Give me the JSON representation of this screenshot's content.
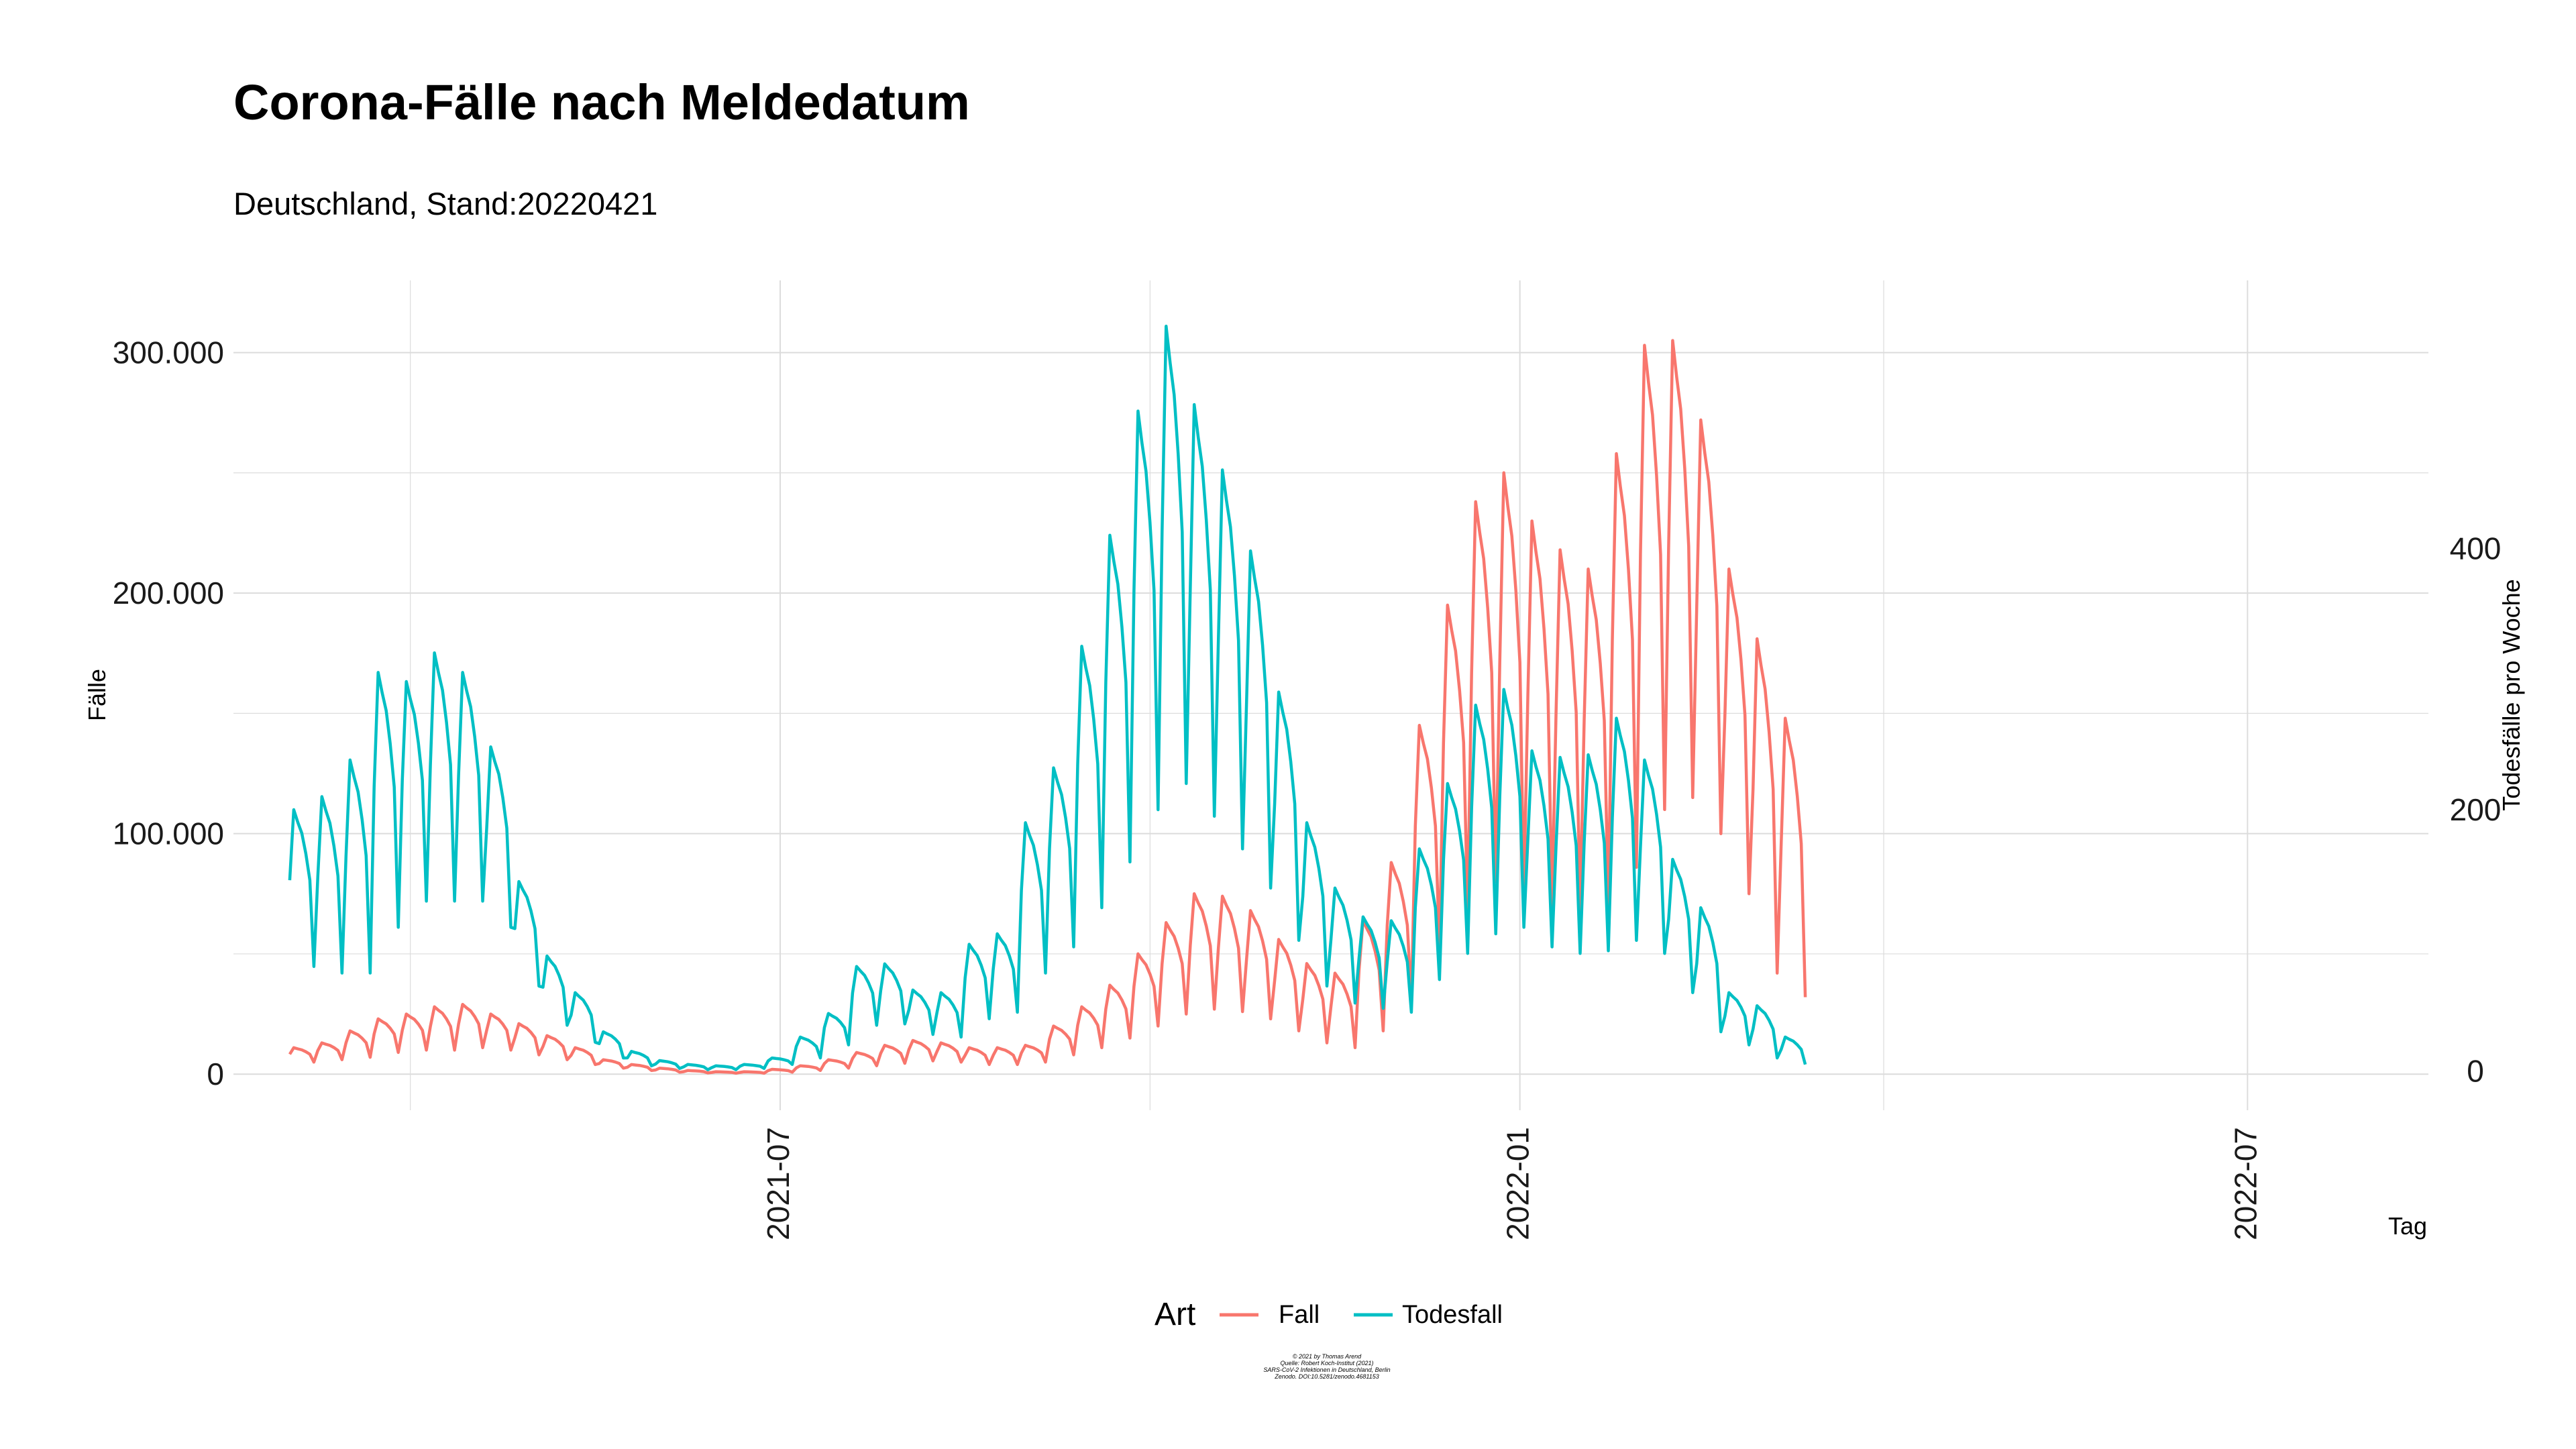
{
  "title": "Corona-Fälle nach Meldedatum",
  "subtitle": "Deutschland, Stand:20220421",
  "caption": [
    "© 2021 by Thomas Arend",
    "Quelle: Robert Koch-Institut (2021)",
    "SARS-CoV-2 Infektionen in Deutschland, Berlin",
    "Zenodo. DOI:10.5281/zenodo.4681153"
  ],
  "colors": {
    "Fall": "#F8766D",
    "Todesfall": "#00BFC4",
    "grid": "#dcdcdc"
  },
  "chart_data": {
    "type": "line",
    "title": "Corona-Fälle nach Meldedatum",
    "subtitle": "Deutschland, Stand:20220421",
    "xlabel": "Tag",
    "ylabel": "Fälle",
    "y2label": "Todesfälle pro Woche",
    "x_ticks": [
      "2021-07",
      "2022-01",
      "2022-07"
    ],
    "xlim": [
      "2021-02-15",
      "2022-08-15"
    ],
    "ylim": [
      -15000,
      330000
    ],
    "y_ticks": [
      0,
      100000,
      200000,
      300000
    ],
    "y_tick_labels": [
      "0",
      "100.000",
      "200.000",
      "300.000"
    ],
    "y2lim": [
      -30,
      605
    ],
    "y2_ticks": [
      0,
      200,
      400
    ],
    "y2_tick_labels": [
      "0",
      "200",
      "400"
    ],
    "grid": true,
    "legend": {
      "position": "bottom",
      "title": "Art",
      "entries": [
        "Fall",
        "Todesfall"
      ]
    },
    "series": [
      {
        "name": "Fall",
        "axis": "left",
        "x_start": "2021-03-01",
        "interval_days": 7,
        "pattern": "weekly",
        "weekly_peak": [
          11000,
          13000,
          18000,
          23000,
          25000,
          28000,
          29000,
          25000,
          21000,
          16000,
          11000,
          6000,
          4000,
          2500,
          1500,
          1000,
          1000,
          2000,
          3500,
          6000,
          9000,
          12000,
          14000,
          13000,
          11000,
          11000,
          12000,
          20000,
          28000,
          37000,
          50000,
          63000,
          75000,
          74000,
          68000,
          56000,
          46000,
          42000,
          64000,
          88000,
          145000,
          195000,
          238000,
          250000,
          230000,
          218000,
          210000,
          258000,
          303000,
          305000,
          272000,
          210000,
          181000,
          148000
        ],
        "weekly_trough": [
          5000,
          6000,
          7000,
          9000,
          10000,
          10000,
          11000,
          10000,
          8000,
          6000,
          4000,
          2500,
          1500,
          800,
          500,
          400,
          400,
          800,
          1500,
          2500,
          3500,
          4500,
          5500,
          5000,
          4000,
          4000,
          5000,
          8000,
          11000,
          15000,
          20000,
          25000,
          27000,
          26000,
          23000,
          18000,
          13000,
          11000,
          18000,
          30000,
          52000,
          68000,
          80000,
          75000,
          70000,
          68000,
          70000,
          86000,
          110000,
          115000,
          100000,
          75000,
          42000,
          32000
        ]
      },
      {
        "name": "Todesfall",
        "axis": "right",
        "x_start": "2021-03-01",
        "interval_days": 7,
        "pattern": "weekly",
        "weekly_peak": [
          200,
          210,
          238,
          305,
          298,
          320,
          305,
          248,
          145,
          88,
          60,
          30,
          15,
          8,
          5,
          4,
          5,
          10,
          26,
          44,
          80,
          82,
          62,
          60,
          97,
          105,
          190,
          232,
          325,
          410,
          505,
          570,
          510,
          460,
          398,
          290,
          190,
          140,
          118,
          115,
          170,
          220,
          280,
          292,
          245,
          240,
          242,
          270,
          238,
          162,
          125,
          60,
          50,
          26
        ],
        "weekly_trough": [
          80,
          75,
          75,
          110,
          130,
          130,
          130,
          110,
          65,
          35,
          22,
          10,
          4,
          2,
          1,
          1,
          2,
          5,
          10,
          20,
          35,
          36,
          28,
          26,
          40,
          45,
          75,
          95,
          125,
          160,
          200,
          220,
          195,
          170,
          140,
          100,
          65,
          52,
          48,
          45,
          70,
          90,
          105,
          110,
          95,
          90,
          92,
          100,
          90,
          60,
          30,
          20,
          10,
          5
        ]
      }
    ]
  }
}
